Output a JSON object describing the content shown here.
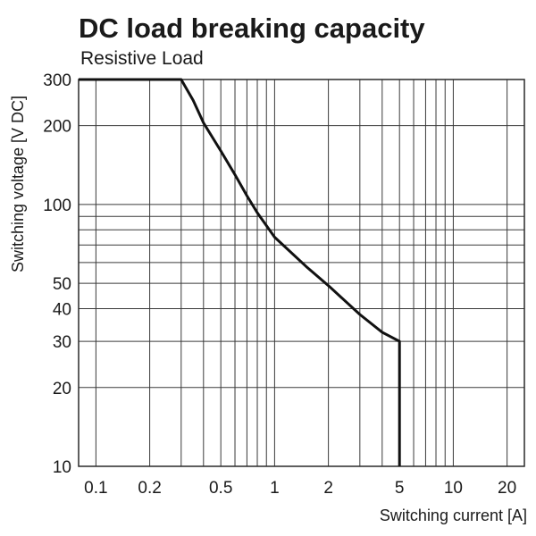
{
  "chart_data": {
    "type": "line",
    "title": "DC load breaking capacity",
    "subtitle": "Resistive Load",
    "xlabel": "Switching current [A]",
    "ylabel": "Switching voltage [V DC]",
    "xscale": "log",
    "yscale": "log",
    "xlim": [
      0.08,
      25
    ],
    "ylim": [
      10,
      300
    ],
    "grid": true,
    "x_ticks": [
      {
        "value": 0.1,
        "label": "0.1"
      },
      {
        "value": 0.2,
        "label": "0.2"
      },
      {
        "value": 0.5,
        "label": "0.5"
      },
      {
        "value": 1,
        "label": "1"
      },
      {
        "value": 2,
        "label": "2"
      },
      {
        "value": 5,
        "label": "5"
      },
      {
        "value": 10,
        "label": "10"
      },
      {
        "value": 20,
        "label": "20"
      }
    ],
    "y_ticks": [
      {
        "value": 10,
        "label": "10"
      },
      {
        "value": 20,
        "label": "20"
      },
      {
        "value": 30,
        "label": "30"
      },
      {
        "value": 40,
        "label": "40"
      },
      {
        "value": 50,
        "label": "50"
      },
      {
        "value": 100,
        "label": "100"
      },
      {
        "value": 200,
        "label": "200"
      },
      {
        "value": 300,
        "label": "300"
      }
    ],
    "x_grid": [
      0.1,
      0.2,
      0.3,
      0.4,
      0.5,
      0.6,
      0.7,
      0.8,
      0.9,
      1,
      2,
      3,
      4,
      5,
      6,
      7,
      8,
      9,
      10,
      20
    ],
    "y_grid": [
      10,
      20,
      30,
      40,
      50,
      60,
      70,
      80,
      90,
      100,
      200,
      300
    ],
    "series": [
      {
        "points": [
          {
            "x": 0.08,
            "y": 300
          },
          {
            "x": 0.3,
            "y": 300
          },
          {
            "x": 0.35,
            "y": 250
          },
          {
            "x": 0.4,
            "y": 205
          },
          {
            "x": 0.5,
            "y": 160
          },
          {
            "x": 0.6,
            "y": 130
          },
          {
            "x": 0.7,
            "y": 108
          },
          {
            "x": 0.8,
            "y": 93
          },
          {
            "x": 1,
            "y": 75
          },
          {
            "x": 1.5,
            "y": 58
          },
          {
            "x": 2,
            "y": 49
          },
          {
            "x": 3,
            "y": 38
          },
          {
            "x": 4,
            "y": 32.5
          },
          {
            "x": 5,
            "y": 30
          },
          {
            "x": 5,
            "y": 10
          }
        ]
      }
    ]
  }
}
